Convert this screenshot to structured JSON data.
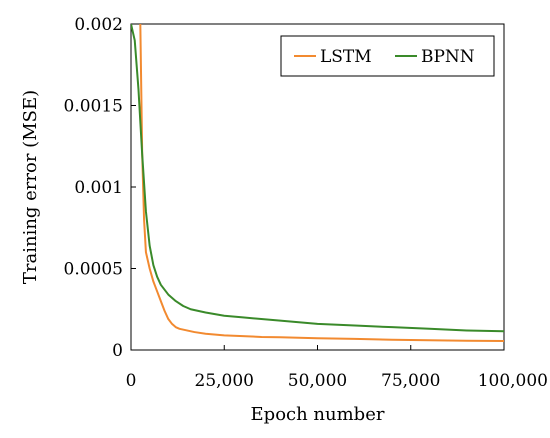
{
  "chart_data": {
    "type": "line",
    "title": "",
    "xlabel": "Epoch number",
    "ylabel": "Training error (MSE)",
    "xlim": [
      0,
      100000
    ],
    "ylim": [
      0,
      0.002
    ],
    "x_ticks": [
      "0",
      "25,000",
      "50,000",
      "75,000",
      "100,000"
    ],
    "x_tick_values": [
      0,
      25000,
      50000,
      75000,
      100000
    ],
    "y_ticks": [
      "0",
      "0.0005",
      "0.001",
      "0.0015",
      "0.002"
    ],
    "y_tick_values": [
      0,
      0.0005,
      0.001,
      0.0015,
      0.002
    ],
    "grid": false,
    "legend": "top-right, boxed",
    "series": [
      {
        "name": "LSTM",
        "color": "#f28a30",
        "x": [
          2500,
          3000,
          3500,
          4000,
          5000,
          6000,
          7000,
          8000,
          9000,
          10000,
          11000,
          12000,
          13000,
          15000,
          17000,
          20000,
          25000,
          30000,
          35000,
          40000,
          50000,
          60000,
          70000,
          80000,
          90000,
          100000
        ],
        "y": [
          0.002,
          0.0012,
          0.0008,
          0.0006,
          0.0005,
          0.00042,
          0.00036,
          0.0003,
          0.00024,
          0.00019,
          0.00016,
          0.00014,
          0.00013,
          0.00012,
          0.00011,
          0.0001,
          9e-05,
          8.5e-05,
          8e-05,
          7.8e-05,
          7.2e-05,
          6.8e-05,
          6.3e-05,
          6e-05,
          5.7e-05,
          5.5e-05
        ]
      },
      {
        "name": "BPNN",
        "color": "#3a8a2a",
        "x": [
          0,
          1000,
          2000,
          3000,
          4000,
          5000,
          6000,
          7000,
          8000,
          9000,
          10000,
          12000,
          14000,
          16000,
          20000,
          25000,
          30000,
          40000,
          50000,
          60000,
          70000,
          80000,
          90000,
          100000
        ],
        "y": [
          0.002,
          0.0019,
          0.0016,
          0.0012,
          0.00085,
          0.00064,
          0.00052,
          0.00045,
          0.0004,
          0.00037,
          0.00034,
          0.0003,
          0.00027,
          0.00025,
          0.00023,
          0.00021,
          0.0002,
          0.00018,
          0.00016,
          0.00015,
          0.00014,
          0.00013,
          0.00012,
          0.000115
        ]
      }
    ]
  }
}
